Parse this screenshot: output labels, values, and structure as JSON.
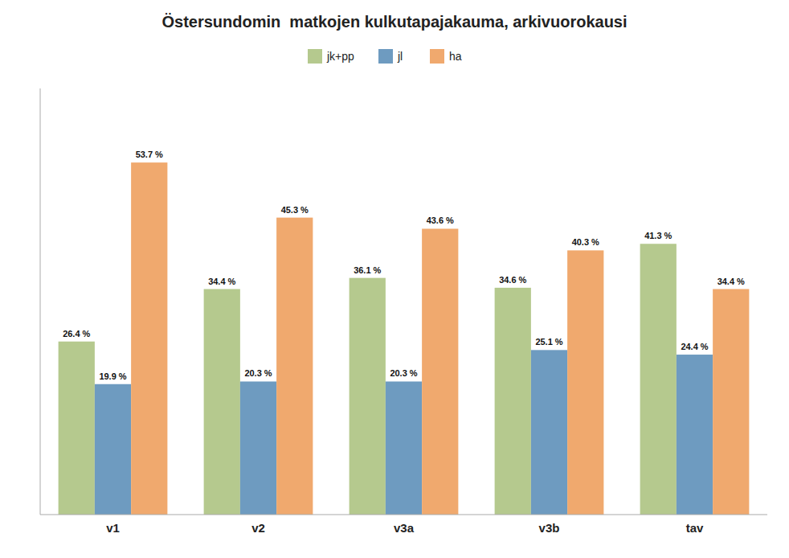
{
  "chart_data": {
    "type": "bar",
    "title": "Östersundomin  matkojen kulkutapajakauma, arkivuorokausi",
    "categories": [
      "v1",
      "v2",
      "v3a",
      "v3b",
      "tav"
    ],
    "series": [
      {
        "name": "jk+pp",
        "color": "#b5c98e",
        "values": [
          26.4,
          34.4,
          36.1,
          34.6,
          41.3
        ],
        "value_labels": [
          "26.4 %",
          "34.4 %",
          "36.1 %",
          "34.6 %",
          "41.3 %"
        ]
      },
      {
        "name": "jl",
        "color": "#6e9bc0",
        "values": [
          19.9,
          20.3,
          20.3,
          25.1,
          24.4
        ],
        "value_labels": [
          "19.9 %",
          "20.3 %",
          "20.3 %",
          "25.1 %",
          "24.4 %"
        ]
      },
      {
        "name": "ha",
        "color": "#f0a96e",
        "values": [
          53.7,
          45.3,
          43.6,
          40.3,
          34.4
        ],
        "value_labels": [
          "53.7 %",
          "45.3 %",
          "43.6 %",
          "40.3 %",
          "34.4 %"
        ]
      }
    ],
    "ylim": [
      0,
      65
    ],
    "yticks": [],
    "tick_labels": "x",
    "data_labels": true,
    "legend": "top",
    "grid": false
  }
}
